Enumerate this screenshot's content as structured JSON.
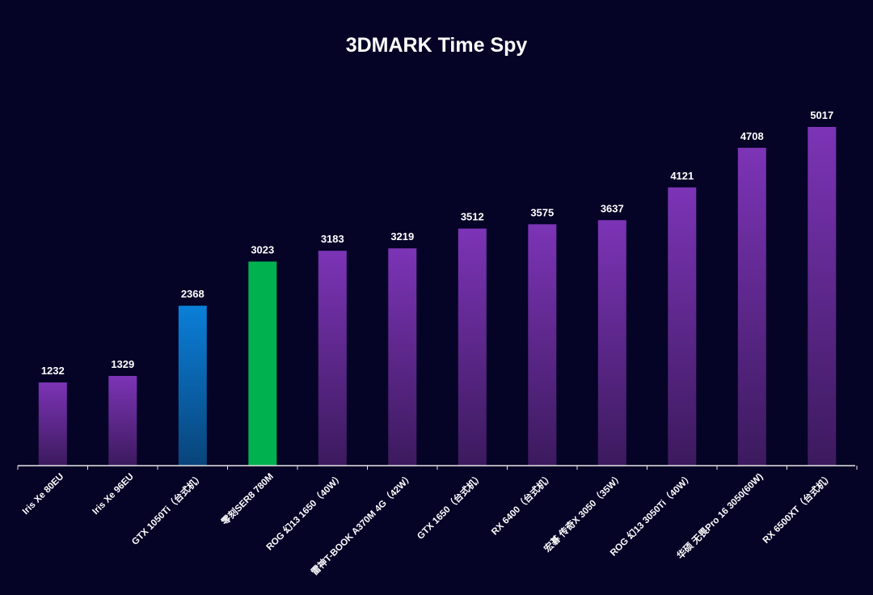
{
  "colors": {
    "background": "#050326",
    "purple_top": "#7c34b6",
    "purple_bottom": "#3c1a5e",
    "blue_top": "#0a7fd8",
    "blue_bottom": "#09447a",
    "green": "#00b150",
    "axis": "#e6e6e6",
    "text": "#ffffff"
  },
  "chart_data": {
    "type": "bar",
    "title": "3DMARK Time Spy",
    "xlabel": "",
    "ylabel": "",
    "ylim": [
      0,
      5017
    ],
    "grid": false,
    "categories": [
      "Iris Xe 80EU",
      "Iris Xe 96EU",
      "GTX 1050Ti（台式机）",
      "零刻SER8 780M",
      "ROG 幻13 1650（40W）",
      "雷神T-BOOK A370M 4G（42W）",
      "GTX 1650（台式机）",
      "RX 6400（台式机）",
      "宏碁 传奇X 3050（35W）",
      "ROG 幻13 3050Ti（40W）",
      "华硕 无畏Pro 16 3050(60W)",
      "RX 6500XT（台式机）"
    ],
    "values": [
      1232,
      1329,
      2368,
      3023,
      3183,
      3219,
      3512,
      3575,
      3637,
      4121,
      4708,
      5017
    ],
    "value_labels": [
      "1232",
      "1329",
      "2368",
      "3023",
      "3183",
      "3219",
      "3512",
      "3575",
      "3637",
      "4121",
      "4708",
      "5017"
    ],
    "bar_colors": [
      "purple",
      "purple",
      "blue",
      "green",
      "purple",
      "purple",
      "purple",
      "purple",
      "purple",
      "purple",
      "purple",
      "purple"
    ]
  }
}
